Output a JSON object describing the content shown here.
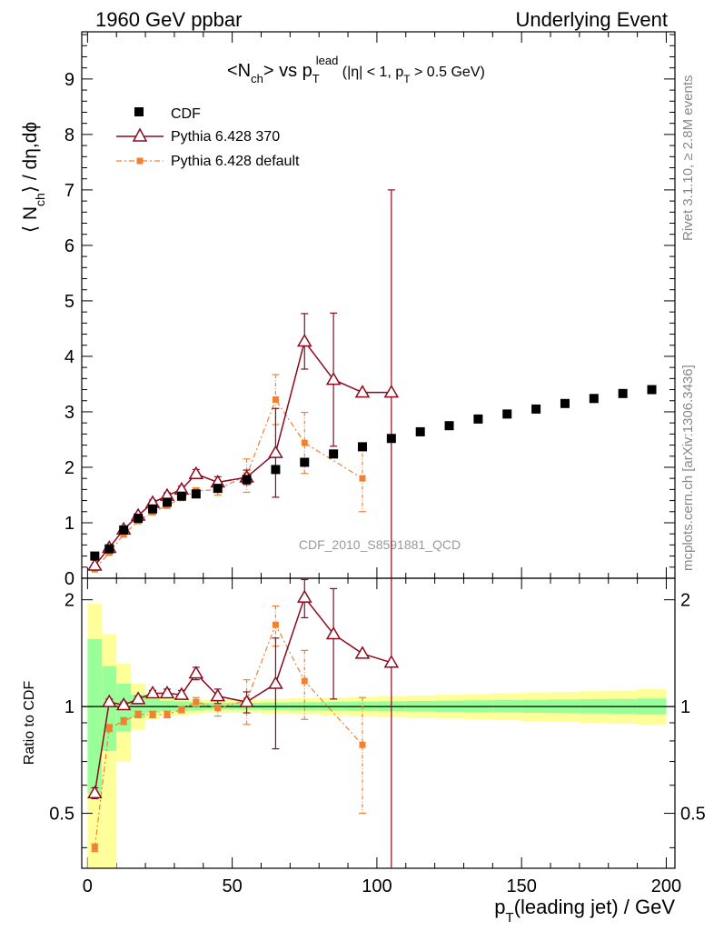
{
  "header": {
    "left_title": "1960 GeV ppbar",
    "right_title": "Underlying Event"
  },
  "side": {
    "rivet": "Rivet 3.1.10, ≥ 2.8M events",
    "mcplots": "mcplots.cern.ch [arXiv:1306.3436]"
  },
  "plot_title": {
    "main": "<N",
    "main_sub": "ch",
    "main2": "> vs p",
    "main2_sub": "T",
    "main2_sup": "lead",
    "cuts": " (|η| < 1, p",
    "cuts_sub": "T",
    "cuts2": " > 0.5 GeV)"
  },
  "ylabel_main": {
    "p1": "⟨ N",
    "sub": "ch",
    "p2": "⟩ / dη,dϕ"
  },
  "ylabel_ratio": "Ratio to CDF",
  "xlabel": {
    "p1": "p",
    "sub": "T",
    "p2": "(leading jet) / GeV"
  },
  "watermark": "CDF_2010_S8591881_QCD",
  "legend": {
    "cdf": "CDF",
    "p370": "Pythia 6.428 370",
    "pdef": "Pythia 6.428 default"
  },
  "colors": {
    "data": "#000000",
    "p370": "#8b0a1e",
    "pdef": "#f28030",
    "band_inner": "#99ff99",
    "band_outer": "#ffff99",
    "watermark": "#999999"
  },
  "chart_data": [
    {
      "type": "scatter",
      "panel": "main",
      "xlim": [
        -2,
        203
      ],
      "ylim": [
        0,
        9.85
      ],
      "xticks": [
        0,
        50,
        100,
        150,
        200
      ],
      "yticks": [
        0,
        1,
        2,
        3,
        4,
        5,
        6,
        7,
        8,
        9
      ],
      "series": [
        {
          "name": "CDF",
          "x": [
            2.5,
            7.5,
            12.5,
            17.5,
            22.5,
            27.5,
            32.5,
            37.5,
            45,
            55,
            65,
            75,
            85,
            95,
            105,
            115,
            125,
            135,
            145,
            155,
            165,
            175,
            185,
            195
          ],
          "y": [
            0.4,
            0.53,
            0.87,
            1.08,
            1.25,
            1.37,
            1.48,
            1.52,
            1.62,
            1.78,
            1.96,
            2.09,
            2.24,
            2.37,
            2.52,
            2.64,
            2.75,
            2.87,
            2.96,
            3.05,
            3.15,
            3.24,
            3.33,
            3.4
          ]
        },
        {
          "name": "Pythia 6.428 370",
          "x": [
            2.5,
            7.5,
            12.5,
            17.5,
            22.5,
            27.5,
            32.5,
            37.5,
            45,
            55,
            65,
            75,
            85,
            95,
            105
          ],
          "y": [
            0.23,
            0.55,
            0.88,
            1.13,
            1.36,
            1.49,
            1.6,
            1.88,
            1.73,
            1.82,
            2.26,
            4.27,
            3.58,
            3.35,
            3.35
          ],
          "yerr": [
            0.02,
            0.03,
            0.03,
            0.04,
            0.05,
            0.05,
            0.06,
            0.08,
            0.1,
            0.13,
            0.8,
            0.5,
            1.2,
            0,
            3.65
          ]
        },
        {
          "name": "Pythia 6.428 default",
          "x": [
            2.5,
            7.5,
            12.5,
            17.5,
            22.5,
            27.5,
            32.5,
            37.5,
            45,
            55,
            65,
            75,
            95
          ],
          "y": [
            0.16,
            0.46,
            0.79,
            1.03,
            1.19,
            1.31,
            1.45,
            1.57,
            1.6,
            1.85,
            3.22,
            2.44,
            1.8
          ],
          "yerr": [
            0.02,
            0.03,
            0.03,
            0.04,
            0.04,
            0.05,
            0.05,
            0.06,
            0.1,
            0.3,
            0.45,
            0.55,
            0.6
          ]
        }
      ]
    },
    {
      "type": "scatter",
      "panel": "ratio",
      "xlim": [
        -2,
        203
      ],
      "ylim": [
        0.35,
        2.3
      ],
      "yscale": "log",
      "yticks": [
        0.5,
        1,
        2
      ],
      "reference_line": 1,
      "bands": {
        "edges": [
          0,
          5,
          10,
          15,
          20,
          25,
          30,
          35,
          40,
          50,
          60,
          70,
          80,
          90,
          100,
          110,
          120,
          130,
          140,
          150,
          160,
          170,
          180,
          190,
          200
        ],
        "inner_low": [
          0.57,
          0.75,
          0.85,
          0.93,
          0.96,
          0.97,
          0.97,
          0.975,
          0.98,
          0.98,
          0.978,
          0.976,
          0.974,
          0.972,
          0.97,
          0.968,
          0.966,
          0.964,
          0.962,
          0.96,
          0.958,
          0.956,
          0.954,
          0.95
        ],
        "inner_high": [
          1.55,
          1.3,
          1.16,
          1.08,
          1.05,
          1.04,
          1.035,
          1.03,
          1.025,
          1.025,
          1.027,
          1.029,
          1.031,
          1.033,
          1.035,
          1.037,
          1.039,
          1.041,
          1.043,
          1.045,
          1.047,
          1.049,
          1.051,
          1.054
        ],
        "outer_low": [
          0.35,
          0.35,
          0.7,
          0.86,
          0.92,
          0.94,
          0.945,
          0.955,
          0.96,
          0.96,
          0.955,
          0.95,
          0.945,
          0.94,
          0.935,
          0.93,
          0.925,
          0.92,
          0.915,
          0.91,
          0.905,
          0.9,
          0.895,
          0.89
        ],
        "outer_high": [
          1.95,
          1.6,
          1.32,
          1.16,
          1.09,
          1.07,
          1.06,
          1.05,
          1.045,
          1.045,
          1.05,
          1.055,
          1.06,
          1.065,
          1.07,
          1.075,
          1.08,
          1.085,
          1.09,
          1.095,
          1.1,
          1.105,
          1.11,
          1.12
        ]
      },
      "series": [
        {
          "name": "Pythia 6.428 370",
          "x": [
            2.5,
            7.5,
            12.5,
            17.5,
            22.5,
            27.5,
            32.5,
            37.5,
            45,
            55,
            65,
            75,
            85,
            95,
            105
          ],
          "y": [
            0.57,
            1.03,
            1.01,
            1.05,
            1.09,
            1.09,
            1.08,
            1.24,
            1.07,
            1.03,
            1.16,
            2.03,
            1.6,
            1.41,
            1.33
          ],
          "yerr": [
            0.02,
            0.02,
            0.02,
            0.02,
            0.02,
            0.03,
            0.03,
            0.05,
            0.05,
            0.07,
            0.4,
            0.25,
            0.55,
            0,
            1.45
          ]
        },
        {
          "name": "Pythia 6.428 default",
          "x": [
            2.5,
            7.5,
            12.5,
            17.5,
            22.5,
            27.5,
            32.5,
            37.5,
            45,
            55,
            65,
            75,
            95
          ],
          "y": [
            0.4,
            0.87,
            0.91,
            0.95,
            0.95,
            0.95,
            0.98,
            1.03,
            0.99,
            1.04,
            1.7,
            1.18,
            0.78
          ],
          "yerr": [
            0.01,
            0.02,
            0.02,
            0.02,
            0.02,
            0.02,
            0.02,
            0.03,
            0.05,
            0.15,
            0.22,
            0.26,
            0.28
          ]
        }
      ]
    }
  ]
}
